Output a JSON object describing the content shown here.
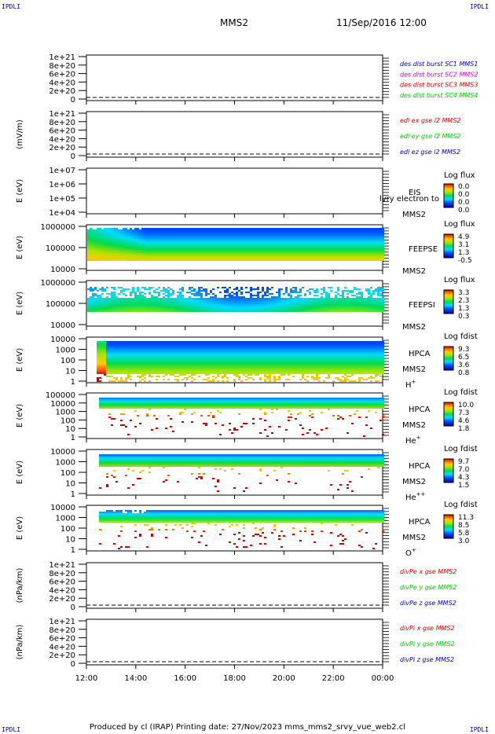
{
  "corners": {
    "tl": "IPDLI",
    "tr": "IPDLI",
    "bl": "IPDLI",
    "br": "IPDLI"
  },
  "header": {
    "spacecraft": "MMS2",
    "datetime": "11/Sep/2016 12:00"
  },
  "footer": {
    "text": "Produced by cl (IRAP)   Printing date: 27/Nov/2023   mms_mms2_srvy_vue_web2.cl"
  },
  "colors": {
    "red": "#dd0000",
    "magenta": "#dd00dd",
    "green": "#00cc00",
    "blue": "#0000cc"
  },
  "chart_data": [
    {
      "type": "line",
      "ylabel": "",
      "yticks": [
        "0",
        "2e+20",
        "4e+20",
        "6e+20",
        "8e+20",
        "1e+21"
      ],
      "series": [
        {
          "name": "des dist burst SC1 MMS1",
          "color": "#0000cc"
        },
        {
          "name": "des dist burst SC2 MMS2",
          "color": "#dd00dd"
        },
        {
          "name": "des dist burst SC3 MMS3",
          "color": "#dd0000"
        },
        {
          "name": "des dist burst SC4 MMS4",
          "color": "#00cc00"
        }
      ]
    },
    {
      "type": "line",
      "ylabel": "(mV/m)",
      "yticks": [
        "0",
        "2e+20",
        "4e+20",
        "6e+20",
        "8e+20",
        "1e+21"
      ],
      "series": [
        {
          "name": "edi ex gse l2 MMS2",
          "color": "#dd0000"
        },
        {
          "name": "edi ey gse l2 MMS2",
          "color": "#00cc00"
        },
        {
          "name": "edi ez gse l2 MMS2",
          "color": "#0000cc"
        }
      ]
    },
    {
      "type": "heatmap",
      "ylabel": "E (eV)",
      "yticks": [
        "1e+04",
        "1e+05",
        "1e+06",
        "1e+07"
      ],
      "labels": [
        "EIS",
        "MMS2"
      ],
      "overlay": "lvry electron to",
      "cbar_title": "Log flux",
      "cbar_ticks": [
        "0.0",
        "0.0",
        "0.0",
        "0.0"
      ],
      "fill": "none"
    },
    {
      "type": "heatmap",
      "ylabel": "E (eV)",
      "yticks": [
        "10000",
        "100000",
        "1000000"
      ],
      "labels": [
        "FEEPSE",
        "MMS2"
      ],
      "cbar_title": "Log flux",
      "cbar_ticks": [
        "4.9",
        "3.1",
        "1.3",
        "-0.5"
      ],
      "fill": "feepse"
    },
    {
      "type": "heatmap",
      "ylabel": "E (eV)",
      "yticks": [
        "10000",
        "100000",
        "1000000"
      ],
      "labels": [
        "FEEPSI",
        "MMS2"
      ],
      "cbar_title": "Log flux",
      "cbar_ticks": [
        "3.3",
        "2.3",
        "1.3",
        "0.3"
      ],
      "fill": "feepsi"
    },
    {
      "type": "heatmap",
      "ylabel": "E (eV)",
      "yticks": [
        "1",
        "10",
        "100",
        "1000",
        "10000"
      ],
      "labels": [
        "HPCA",
        "MMS2",
        "H+"
      ],
      "cbar_title": "Log fdist",
      "cbar_ticks": [
        "9.3",
        "6.5",
        "3.6",
        "0.8"
      ],
      "fill": "hplus"
    },
    {
      "type": "heatmap",
      "ylabel": "E (eV)",
      "yticks": [
        "1",
        "10",
        "100",
        "1000",
        "10000",
        "100000"
      ],
      "labels": [
        "HPCA",
        "MMS2",
        "He+"
      ],
      "cbar_title": "Log fdist",
      "cbar_ticks": [
        "10.0",
        "7.3",
        "4.6",
        "1.8"
      ],
      "fill": "heplus"
    },
    {
      "type": "heatmap",
      "ylabel": "E (eV)",
      "yticks": [
        "1",
        "10",
        "100",
        "1000",
        "10000"
      ],
      "labels": [
        "HPCA",
        "MMS2",
        "He++"
      ],
      "cbar_title": "Log fdist",
      "cbar_ticks": [
        "9.7",
        "7.0",
        "4.3",
        "1.5"
      ],
      "fill": "hepp"
    },
    {
      "type": "heatmap",
      "ylabel": "E (eV)",
      "yticks": [
        "1",
        "10",
        "100",
        "1000",
        "10000"
      ],
      "labels": [
        "HPCA",
        "MMS2",
        "O+"
      ],
      "cbar_title": "Log fdist",
      "cbar_ticks": [
        "11.3",
        "8.5",
        "5.8",
        "3.0"
      ],
      "fill": "oplus"
    },
    {
      "type": "line",
      "ylabel": "(nPa/km)",
      "yticks": [
        "0",
        "2e+20",
        "4e+20",
        "6e+20",
        "8e+20",
        "1e+21"
      ],
      "series": [
        {
          "name": "divPe x gse MMS2",
          "color": "#dd0000"
        },
        {
          "name": "divPe y gse MMS2",
          "color": "#00cc00"
        },
        {
          "name": "divPe z gse MMS2",
          "color": "#0000cc"
        }
      ]
    },
    {
      "type": "line",
      "ylabel": "(nPa/km)",
      "yticks": [
        "0",
        "2e+20",
        "4e+20",
        "6e+20",
        "8e+20",
        "1e+21"
      ],
      "series": [
        {
          "name": "divPi x gse MMS2",
          "color": "#dd0000"
        },
        {
          "name": "divPi y gse MMS2",
          "color": "#00cc00"
        },
        {
          "name": "divPi z gse MMS2",
          "color": "#0000cc"
        }
      ]
    }
  ],
  "xaxis": {
    "ticks": [
      "12:00",
      "14:00",
      "16:00",
      "18:00",
      "20:00",
      "22:00",
      "00:00"
    ]
  }
}
